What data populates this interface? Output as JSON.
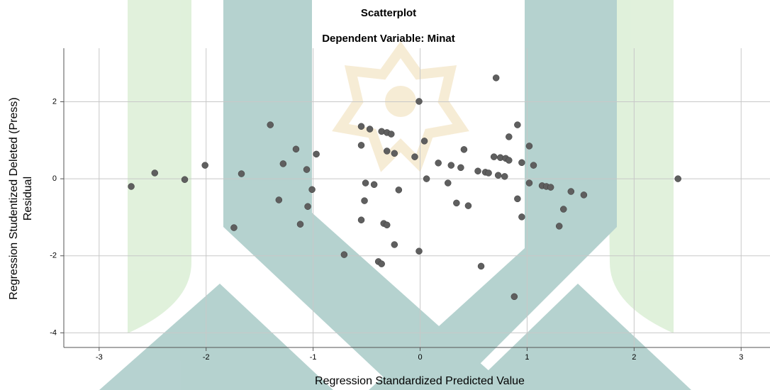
{
  "chart_data": {
    "type": "scatter",
    "title": "Scatterplot",
    "subtitle": "Dependent Variable: Minat",
    "xlabel": "Regression Standardized Predicted Value",
    "ylabel": [
      "Regression Studentized Deleted (Press)",
      "Residual"
    ],
    "color": "#5f5f5f",
    "grid": true,
    "xlim": [
      -3.33,
      3.27
    ],
    "ylim": [
      -4.38,
      3.39
    ],
    "xticks": [
      -3,
      -2,
      -1,
      0,
      1,
      2,
      3
    ],
    "yticks": [
      -4,
      -2,
      0,
      2
    ],
    "x": [
      -2.7,
      -2.48,
      -2.2,
      -2.01,
      -1.67,
      -1.74,
      -1.4,
      -1.32,
      -1.28,
      -1.16,
      -1.12,
      -1.06,
      -1.05,
      -1.01,
      -0.97,
      -0.71,
      -0.55,
      -0.55,
      -0.55,
      -0.51,
      -0.52,
      -0.47,
      -0.43,
      -0.39,
      -0.36,
      -0.36,
      -0.31,
      -0.27,
      -0.34,
      -0.31,
      -0.31,
      -0.24,
      -0.24,
      -0.2,
      -0.05,
      -0.01,
      -0.01,
      0.04,
      0.06,
      0.17,
      0.26,
      0.29,
      0.34,
      0.38,
      0.41,
      0.45,
      0.54,
      0.57,
      0.61,
      0.64,
      0.69,
      0.71,
      0.73,
      0.75,
      0.79,
      0.8,
      0.83,
      0.83,
      0.88,
      0.91,
      0.91,
      0.95,
      0.95,
      1.02,
      1.02,
      1.06,
      1.14,
      1.18,
      1.22,
      1.3,
      1.34,
      1.41,
      1.53,
      2.41
    ],
    "y": [
      -0.2,
      0.15,
      -0.02,
      0.35,
      0.13,
      -1.27,
      1.4,
      -0.55,
      0.39,
      0.77,
      -1.18,
      0.24,
      -0.72,
      -0.28,
      0.64,
      -1.97,
      1.36,
      0.87,
      -1.07,
      -0.11,
      -0.57,
      1.29,
      -0.15,
      -2.15,
      -2.21,
      1.23,
      1.2,
      1.16,
      -1.16,
      -1.2,
      0.72,
      0.66,
      -1.71,
      -0.29,
      0.57,
      2.01,
      -1.88,
      0.98,
      0.0,
      0.41,
      -0.11,
      0.35,
      -0.63,
      0.29,
      0.76,
      -0.7,
      0.2,
      -2.27,
      0.17,
      0.15,
      0.57,
      2.62,
      0.09,
      0.55,
      0.06,
      0.53,
      1.09,
      0.48,
      -3.06,
      1.4,
      -0.52,
      0.42,
      -0.99,
      0.85,
      -0.11,
      0.35,
      -0.18,
      -0.2,
      -0.22,
      -1.23,
      -0.79,
      -0.33,
      -0.42,
      0.0
    ]
  }
}
